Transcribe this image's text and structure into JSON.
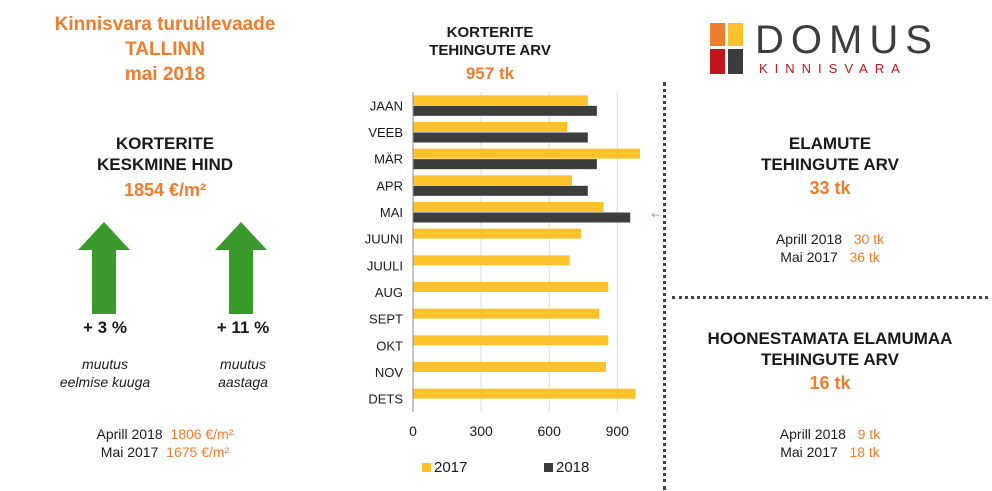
{
  "left": {
    "title_lines": [
      "Kinnisvara turuülevaade",
      "TALLINN",
      "mai 2018"
    ],
    "price_heading_lines": [
      "KORTERITE",
      "KESKMINE HIND"
    ],
    "price_value": "1854 €/m²",
    "change_month": {
      "value": "+ 3 %",
      "caption_lines": [
        "muutus",
        "eelmise kuuga"
      ]
    },
    "change_year": {
      "value": "+ 11 %",
      "caption_lines": [
        "muutus",
        "aastaga"
      ]
    },
    "footer": [
      {
        "label": "Aprill 2018",
        "value": "1806 €/m²"
      },
      {
        "label": "Mai 2017",
        "value": "1675 €/m²"
      }
    ],
    "arrow_color": "#3a9a2b"
  },
  "center": {
    "heading_lines": [
      "KORTERITE",
      "TEHINGUTE ARV"
    ],
    "total": "957 tk"
  },
  "right": {
    "logo_main": "DOMUS",
    "logo_sub": "KINNISVARA",
    "houses": {
      "heading_lines": [
        "ELAMUTE",
        "TEHINGUTE ARV"
      ],
      "value": "33 tk",
      "rows": [
        {
          "label": "Aprill 2018",
          "value": "30 tk"
        },
        {
          "label": "Mai 2017",
          "value": "36 tk"
        }
      ]
    },
    "land": {
      "heading_lines": [
        "HOONESTAMATA ELAMUMAA",
        "TEHINGUTE ARV"
      ],
      "value": "16 tk",
      "rows": [
        {
          "label": "Aprill 2018",
          "value": "9 tk"
        },
        {
          "label": "Mai 2017",
          "value": "18 tk"
        }
      ]
    }
  },
  "chart_data": {
    "type": "bar",
    "orientation": "horizontal",
    "categories": [
      "JAAN",
      "VEEB",
      "MÄR",
      "APR",
      "MAI",
      "JUUNI",
      "JUULI",
      "AUG",
      "SEPT",
      "OKT",
      "NOV",
      "DETS"
    ],
    "series": [
      {
        "name": "2017",
        "color": "#fcc22c",
        "values": [
          770,
          680,
          1000,
          700,
          840,
          740,
          690,
          860,
          820,
          860,
          850,
          980
        ]
      },
      {
        "name": "2018",
        "color": "#3d3d3d",
        "values": [
          810,
          770,
          810,
          770,
          957,
          null,
          null,
          null,
          null,
          null,
          null,
          null
        ]
      }
    ],
    "x_ticks": [
      "0",
      "300",
      "600",
      "900"
    ],
    "xlim": [
      0,
      1000
    ],
    "grid": true,
    "legend": "bottom",
    "highlight_marker": "←",
    "highlight_color": "#f07c2e"
  }
}
